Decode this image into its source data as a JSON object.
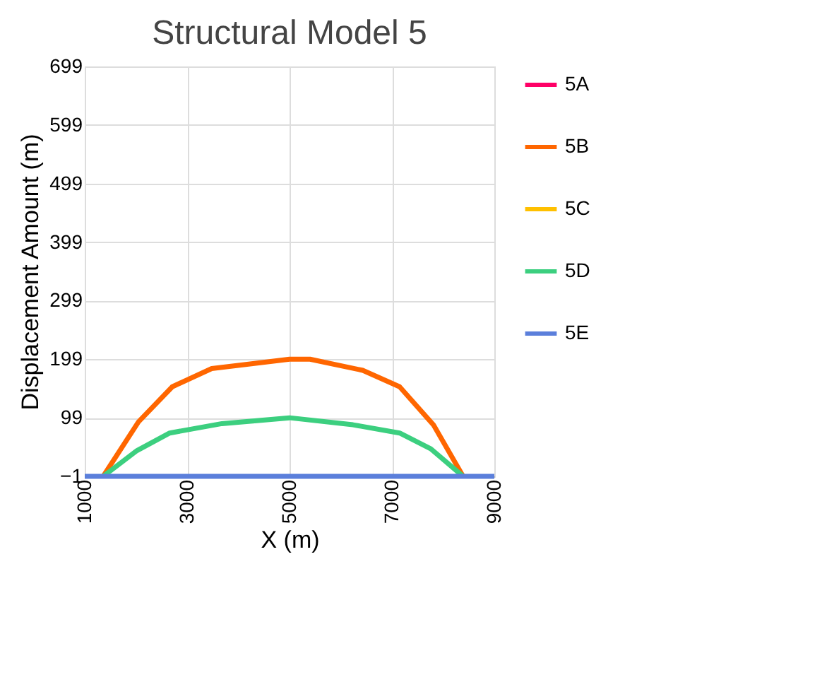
{
  "chart_data": {
    "type": "line",
    "title": "Structural Model 5",
    "xlabel": "X (m)",
    "ylabel": "Displacement Amount (m)",
    "xlim": [
      1000,
      9000
    ],
    "xticks": [
      1000,
      3000,
      5000,
      7000,
      9000
    ],
    "ylim": [
      -1,
      699
    ],
    "yticks": [
      -1,
      99,
      199,
      299,
      399,
      499,
      599,
      699
    ],
    "grid": true,
    "legend": "right",
    "line_style": "solid",
    "marker": "none",
    "series": [
      {
        "name": "5A",
        "color": "#ff0066"
      },
      {
        "name": "5B",
        "color": "#ff6600",
        "x": [
          1360,
          2050,
          2710,
          3480,
          5000,
          5400,
          6430,
          7150,
          7810,
          8390
        ],
        "values": [
          -1,
          92,
          152,
          183,
          199,
          199,
          180,
          152,
          87,
          -1
        ]
      },
      {
        "name": "5C",
        "color": "#ffc000"
      },
      {
        "name": "5D",
        "color": "#3ccf7f",
        "x": [
          1360,
          2020,
          2660,
          3680,
          5000,
          6240,
          7150,
          7760,
          8390
        ],
        "values": [
          -1,
          43,
          73,
          89,
          99,
          87,
          73,
          46,
          -1
        ]
      },
      {
        "name": "5E",
        "color": "#5b7fdb",
        "x": [
          1000,
          9000
        ],
        "values": [
          -1,
          -1
        ]
      }
    ]
  }
}
